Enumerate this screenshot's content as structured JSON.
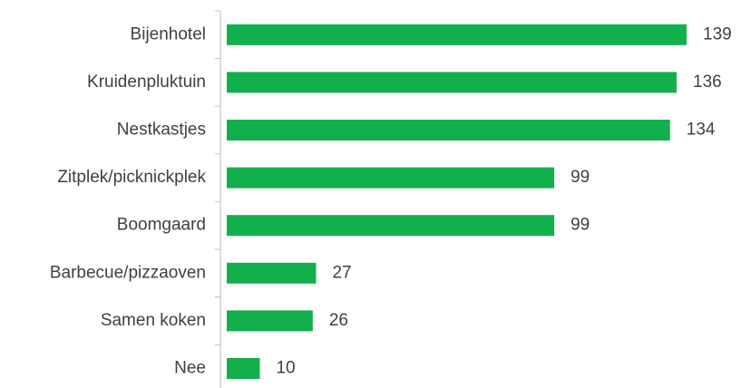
{
  "chart_data": {
    "type": "bar",
    "orientation": "horizontal",
    "categories": [
      "Bijenhotel",
      "Kruidenpluktuin",
      "Nestkastjes",
      "Zitplek/picknickplek",
      "Boomgaard",
      "Barbecue/pizzaoven",
      "Samen koken",
      "Nee"
    ],
    "values": [
      139,
      136,
      134,
      99,
      99,
      27,
      26,
      10
    ],
    "color": "#12b04c"
  }
}
